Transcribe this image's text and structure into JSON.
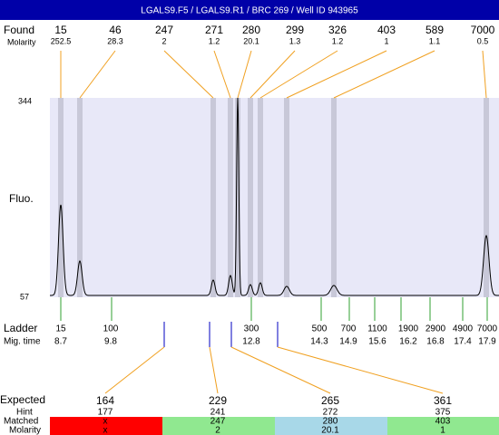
{
  "header": {
    "title": "LGALS9.F5 / LGALS9.R1 / BRC 269 / Well ID 943965"
  },
  "found": {
    "label": "Found",
    "molarity_label": "Molarity",
    "peaks": [
      {
        "size": "15",
        "molarity": "252.5"
      },
      {
        "size": "46",
        "molarity": "28.3"
      },
      {
        "size": "247",
        "molarity": "2"
      },
      {
        "size": "271",
        "molarity": "1.2"
      },
      {
        "size": "280",
        "molarity": "20.1"
      },
      {
        "size": "299",
        "molarity": "1.3"
      },
      {
        "size": "326",
        "molarity": "1.2"
      },
      {
        "size": "403",
        "molarity": "1"
      },
      {
        "size": "589",
        "molarity": "1.1"
      },
      {
        "size": "7000",
        "molarity": "0.5"
      }
    ]
  },
  "plot": {
    "y_label": "Fluo.",
    "y_top": "344",
    "y_bottom": "57"
  },
  "ladder": {
    "label": "Ladder",
    "time_label": "Mig. time",
    "items": [
      {
        "size": "15",
        "time": "8.7"
      },
      {
        "size": "100",
        "time": "9.8"
      },
      {
        "size": "300",
        "time": "12.8"
      },
      {
        "size": "500",
        "time": "14.3"
      },
      {
        "size": "700",
        "time": "14.9"
      },
      {
        "size": "1100",
        "time": "15.6"
      },
      {
        "size": "1900",
        "time": "16.2"
      },
      {
        "size": "2900",
        "time": "16.8"
      },
      {
        "size": "4900",
        "time": "17.4"
      },
      {
        "size": "7000",
        "time": "17.9"
      }
    ]
  },
  "expected": {
    "label": "Expected",
    "hint_label": "Hint",
    "matched_label": "Matched",
    "molarity_label": "Molarity",
    "columns": [
      {
        "expected": "164",
        "hint": "177",
        "matched": "x",
        "molarity": "x"
      },
      {
        "expected": "229",
        "hint": "241",
        "matched": "247",
        "molarity": "2"
      },
      {
        "expected": "265",
        "hint": "272",
        "matched": "280",
        "molarity": "20.1"
      },
      {
        "expected": "361",
        "hint": "375",
        "matched": "403",
        "molarity": "1"
      }
    ]
  }
}
